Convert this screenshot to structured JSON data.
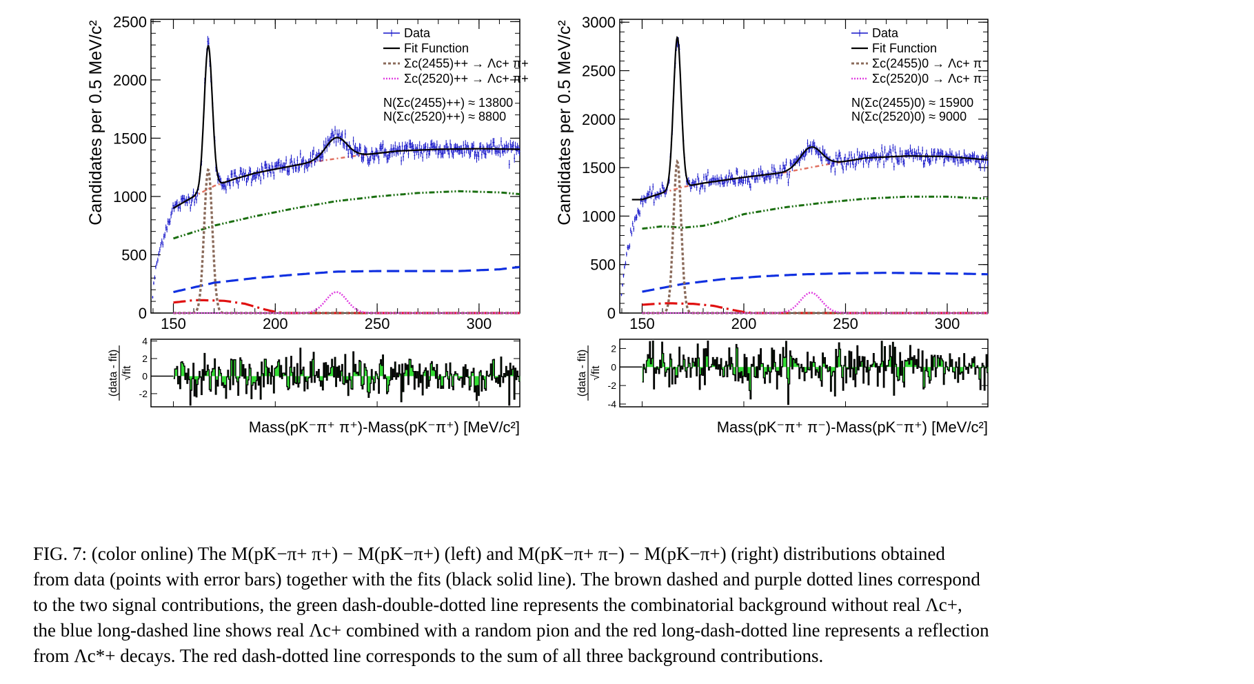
{
  "caption": {
    "line1": "FIG. 7: (color online) The M(pK−π+ π+) − M(pK−π+) (left) and M(pK−π+ π−) − M(pK−π+) (right) distributions obtained",
    "line2": "from data (points with error bars) together with the fits (black solid line). The brown dashed and purple dotted lines correspond",
    "line3": "to the two signal contributions, the green dash-double-dotted line represents the combinatorial background without real Λc+,",
    "line4": "the blue long-dashed line shows real Λc+ combined with a random pion and the red long-dash-dotted line represents a reflection",
    "line5": "from Λc*+ decays. The red dash-dotted line corresponds to the sum of all three background contributions."
  },
  "colors": {
    "data": "#1010c8",
    "fit": "#000000",
    "sig1": "#8a6a5a",
    "sig2": "#e040e0",
    "combinatorial": "#1a6e10",
    "random_pion": "#1030e0",
    "reflection": "#e01010",
    "background_sum": "#e07060",
    "residual_fill": "#33dd33"
  },
  "chart_data": [
    {
      "type": "line",
      "panel": "left",
      "ylabel": "Candidates per 0.5 MeV/c²",
      "xlabel": "Mass(pK⁻π⁺ π⁺)-Mass(pK⁻π⁺) [MeV/c²]",
      "xlim": [
        139,
        320
      ],
      "ylim": [
        0,
        2520
      ],
      "xticks": [
        "150",
        "200",
        "250",
        "300"
      ],
      "yticks": [
        "0",
        "500",
        "1000",
        "1500",
        "2000",
        "2500"
      ],
      "legend_position": "top-right",
      "legend": [
        "Data",
        "Fit Function",
        "Σc(2455)++ → Λc+ π+",
        "Σc(2520)++ → Λc+ π+"
      ],
      "annotations": [
        "N(Σc(2455)++) ≈ 13800",
        "N(Σc(2520)++) ≈ 8800"
      ],
      "residual_ylabel": "(data - fit) / √fit",
      "residual_ylim": [
        -3.5,
        4.2
      ],
      "residual_yticks": [
        "-2",
        "0",
        "2",
        "4"
      ],
      "residual_amplitude": 1.5,
      "series": [
        {
          "key": "background_sum",
          "x": [
            150,
            160,
            170,
            180,
            190,
            200,
            220,
            240,
            260,
            280,
            300,
            320
          ],
          "y": [
            900,
            1000,
            1090,
            1150,
            1200,
            1235,
            1300,
            1350,
            1390,
            1405,
            1410,
            1405
          ]
        },
        {
          "key": "combinatorial",
          "x": [
            150,
            170,
            190,
            210,
            230,
            250,
            270,
            290,
            310,
            320
          ],
          "y": [
            640,
            750,
            830,
            900,
            960,
            1000,
            1030,
            1045,
            1035,
            1020
          ]
        },
        {
          "key": "random_pion",
          "x": [
            150,
            170,
            190,
            210,
            230,
            250,
            270,
            290,
            310,
            320
          ],
          "y": [
            180,
            260,
            300,
            330,
            355,
            360,
            360,
            360,
            375,
            395
          ]
        },
        {
          "key": "reflection",
          "x": [
            150,
            160,
            165,
            175,
            185,
            195,
            200,
            205,
            320
          ],
          "y": [
            90,
            110,
            110,
            105,
            80,
            30,
            10,
            0,
            0
          ]
        },
        {
          "key": "sig1",
          "peak": 167.1,
          "sigma": 2.0,
          "amp": 1230
        },
        {
          "key": "sig2",
          "peak": 230,
          "sigma": 5.2,
          "amp": 180
        },
        {
          "key": "fit",
          "x_range": [
            150,
            320
          ]
        },
        {
          "key": "data",
          "x_range": [
            139,
            320
          ],
          "threshold": 139.6
        }
      ]
    },
    {
      "type": "line",
      "panel": "right",
      "ylabel": "Candidates per 0.5 MeV/c²",
      "xlabel": "Mass(pK⁻π⁺ π⁻)-Mass(pK⁻π⁺) [MeV/c²]",
      "xlim": [
        139,
        320
      ],
      "ylim": [
        0,
        3030
      ],
      "xticks": [
        "150",
        "200",
        "250",
        "300"
      ],
      "yticks": [
        "0",
        "500",
        "1000",
        "1500",
        "2000",
        "2500",
        "3000"
      ],
      "legend_position": "top-right",
      "legend": [
        "Data",
        "Fit Function",
        "Σc(2455)0 → Λc+ π⁻",
        "Σc(2520)0 → Λc+ π⁻"
      ],
      "annotations": [
        "N(Σc(2455)0) ≈ 15900",
        "N(Σc(2520)0) ≈ 9000"
      ],
      "residual_ylabel": "(data - fit) / √fit",
      "residual_ylim": [
        -4.3,
        3.0
      ],
      "residual_yticks": [
        "-4",
        "-2",
        "0",
        "2"
      ],
      "residual_amplitude": 1.4,
      "series": [
        {
          "key": "background_sum",
          "x": [
            150,
            160,
            170,
            180,
            190,
            200,
            220,
            240,
            260,
            280,
            300,
            320
          ],
          "y": [
            1170,
            1240,
            1300,
            1340,
            1370,
            1400,
            1450,
            1530,
            1600,
            1620,
            1615,
            1580
          ]
        },
        {
          "key": "combinatorial",
          "x": [
            150,
            160,
            170,
            180,
            190,
            200,
            220,
            240,
            260,
            280,
            300,
            320
          ],
          "y": [
            870,
            895,
            880,
            900,
            950,
            1020,
            1090,
            1140,
            1180,
            1200,
            1200,
            1180
          ]
        },
        {
          "key": "random_pion",
          "x": [
            150,
            170,
            190,
            210,
            230,
            250,
            270,
            290,
            310,
            320
          ],
          "y": [
            220,
            300,
            350,
            380,
            400,
            410,
            415,
            410,
            405,
            400
          ]
        },
        {
          "key": "reflection",
          "x": [
            150,
            160,
            165,
            175,
            185,
            195,
            200,
            205,
            320
          ],
          "y": [
            85,
            100,
            100,
            95,
            75,
            30,
            10,
            0,
            0
          ]
        },
        {
          "key": "sig1",
          "peak": 167.3,
          "sigma": 1.9,
          "amp": 1560
        },
        {
          "key": "sig2",
          "peak": 233,
          "sigma": 5.2,
          "amp": 210
        },
        {
          "key": "fit",
          "x_range": [
            145,
            320
          ]
        },
        {
          "key": "data",
          "x_range": [
            139,
            320
          ],
          "threshold": 139.6
        }
      ]
    }
  ]
}
